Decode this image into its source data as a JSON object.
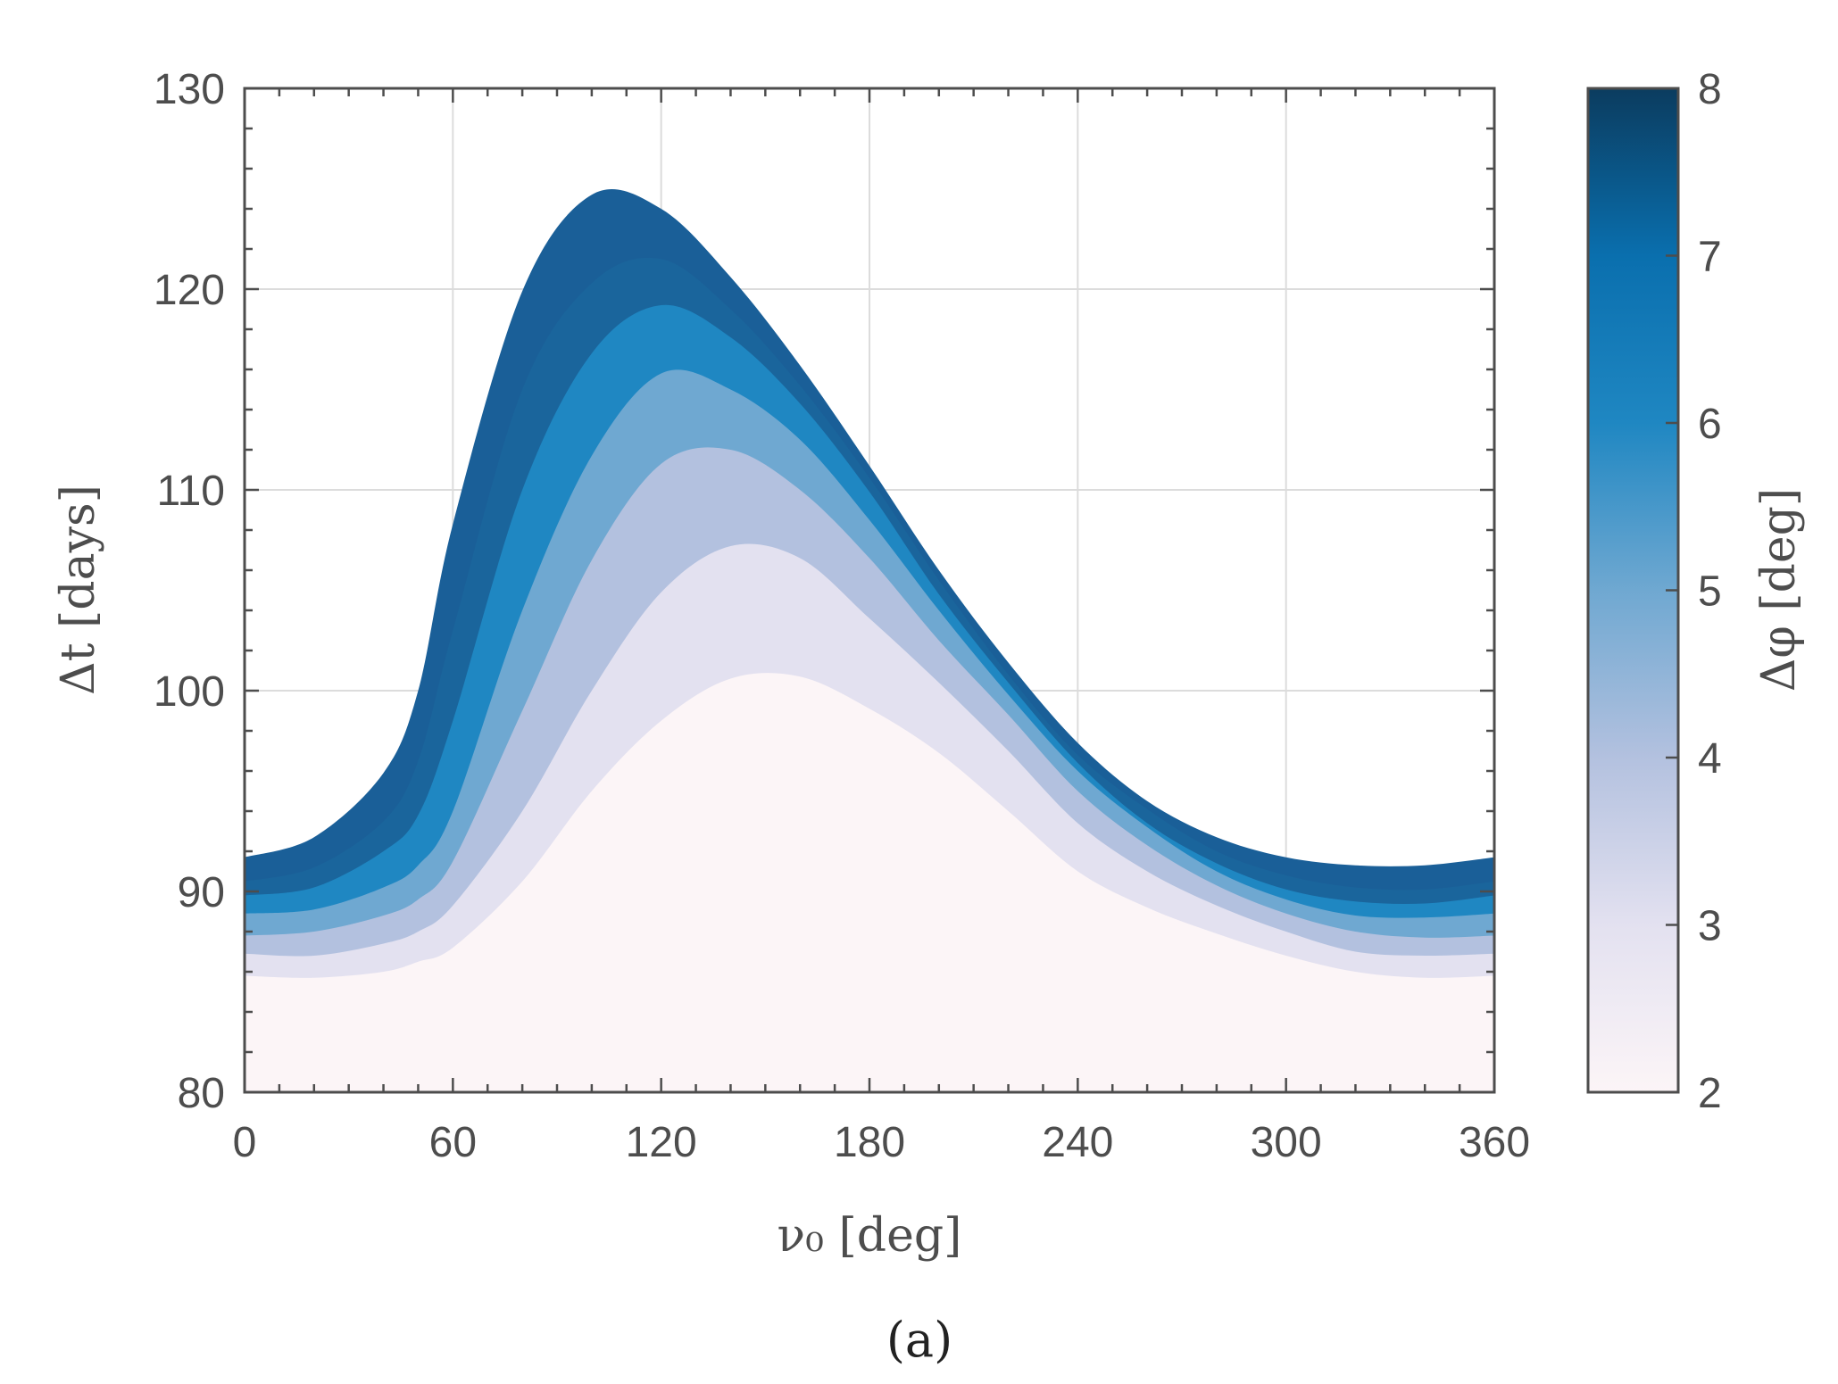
{
  "chart_data": {
    "type": "area",
    "xlabel": "ν₀ [deg]",
    "ylabel": "Δt [days]",
    "xlim": [
      0,
      360
    ],
    "ylim": [
      80,
      130
    ],
    "xticks": [
      "0",
      "60",
      "120",
      "180",
      "240",
      "300",
      "360"
    ],
    "yticks": [
      "80",
      "90",
      "100",
      "110",
      "120",
      "130"
    ],
    "grid": true,
    "colorbar": {
      "label": "Δφ [deg]",
      "range": [
        2,
        8
      ],
      "ticks": [
        "2",
        "3",
        "4",
        "5",
        "6",
        "7",
        "8"
      ],
      "colors": [
        "#fcf5f7",
        "#e3e1f0",
        "#b3c1df",
        "#6fa8d1",
        "#1f87c2",
        "#0a6fae",
        "#0b3c5f"
      ]
    },
    "x": [
      0,
      20,
      40,
      50,
      60,
      80,
      100,
      120,
      140,
      160,
      180,
      200,
      220,
      240,
      260,
      280,
      300,
      320,
      340,
      360
    ],
    "series": [
      {
        "name": "2",
        "color": "#fcf5f7",
        "values": [
          85.8,
          85.7,
          86.0,
          86.5,
          87.2,
          90.5,
          95.0,
          98.5,
          100.6,
          100.7,
          99.1,
          96.9,
          94.0,
          91.0,
          89.2,
          87.9,
          86.8,
          86.0,
          85.7,
          85.8
        ]
      },
      {
        "name": "3",
        "color": "#e3e1f0",
        "values": [
          86.9,
          86.8,
          87.4,
          88.0,
          89.3,
          94.0,
          100.0,
          104.9,
          107.2,
          106.6,
          103.6,
          100.4,
          97.0,
          93.4,
          91.0,
          89.3,
          88.0,
          87.0,
          86.8,
          86.9
        ]
      },
      {
        "name": "4",
        "color": "#b3c1df",
        "values": [
          87.8,
          88.0,
          88.8,
          89.6,
          91.5,
          99.0,
          106.5,
          111.3,
          112.0,
          110.0,
          106.6,
          102.5,
          98.8,
          95.0,
          92.3,
          90.3,
          88.9,
          88.0,
          87.7,
          87.8
        ]
      },
      {
        "name": "5",
        "color": "#6fa8d1",
        "values": [
          88.9,
          89.1,
          90.2,
          91.3,
          94.0,
          104.0,
          111.7,
          115.8,
          115.0,
          112.5,
          108.5,
          104.0,
          99.8,
          96.0,
          93.2,
          91.0,
          89.6,
          88.8,
          88.7,
          88.9
        ]
      },
      {
        "name": "6",
        "color": "#1f87c2",
        "values": [
          89.8,
          90.2,
          92.0,
          93.8,
          98.5,
          110.0,
          116.8,
          119.2,
          117.6,
          114.3,
          109.9,
          104.8,
          100.4,
          96.4,
          93.4,
          91.4,
          90.1,
          89.5,
          89.4,
          89.8
        ]
      },
      {
        "name": "7",
        "color": "#1a659c",
        "values": [
          90.5,
          91.2,
          93.5,
          96.5,
          103.0,
          115.0,
          120.3,
          121.5,
          119.0,
          115.2,
          110.6,
          105.5,
          100.8,
          96.8,
          94.1,
          92.0,
          90.8,
          90.2,
          90.1,
          90.5
        ]
      },
      {
        "name": "8",
        "color": "#1a5f98",
        "values": [
          91.7,
          92.7,
          95.9,
          100.0,
          108.3,
          119.9,
          124.7,
          124.0,
          120.6,
          116.2,
          111.2,
          106.0,
          101.4,
          97.4,
          94.5,
          92.7,
          91.7,
          91.3,
          91.3,
          91.7
        ]
      }
    ]
  },
  "panel_label": "(a)"
}
